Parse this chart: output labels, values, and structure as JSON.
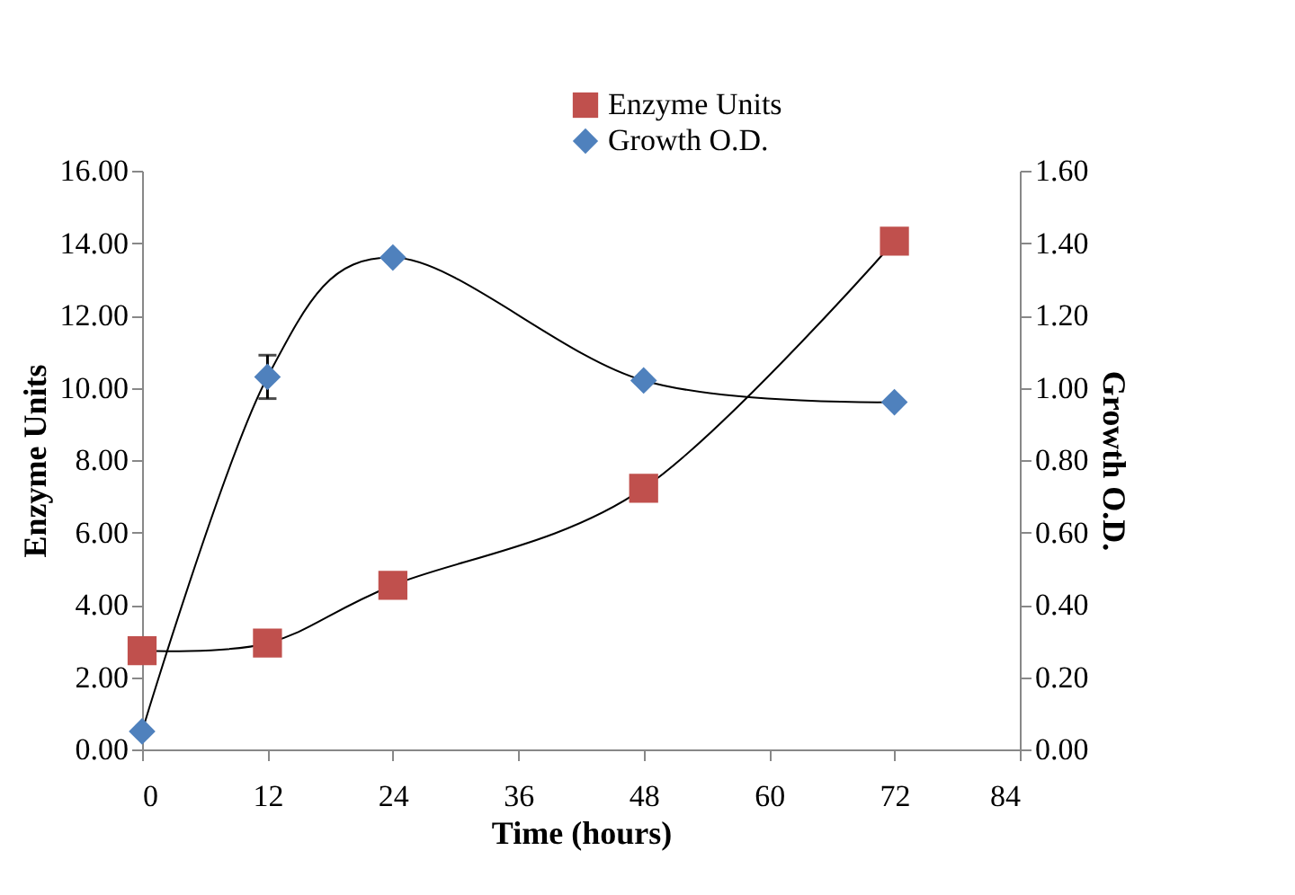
{
  "chart_data": {
    "type": "line",
    "xlabel": "Time (hours)",
    "ylabel": "Enzyme Units",
    "y2label": "Growth O.D.",
    "x": [
      0,
      12,
      24,
      48,
      72
    ],
    "series": [
      {
        "name": "Enzyme Units",
        "color": "#c0504d",
        "marker": "square",
        "values": [
          2.73,
          2.94,
          4.54,
          7.22,
          14.05
        ]
      },
      {
        "name": "Growth O.D.",
        "color": "#4f81bd",
        "marker": "diamond",
        "axis": "y2",
        "values": [
          0.05,
          1.03,
          1.36,
          1.02,
          0.96
        ],
        "errors": [
          null,
          0.06,
          null,
          null,
          null
        ]
      }
    ],
    "xlim": [
      0,
      84
    ],
    "xticks": [
      0,
      12,
      24,
      36,
      48,
      60,
      72,
      84
    ],
    "ylim": [
      0,
      16
    ],
    "yticks": [
      {
        "value": 0,
        "label": "0.00"
      },
      {
        "value": 2,
        "label": "2.00"
      },
      {
        "value": 4,
        "label": "4.00"
      },
      {
        "value": 6,
        "label": "6.00"
      },
      {
        "value": 8,
        "label": "8.00"
      },
      {
        "value": 10,
        "label": "10.00"
      },
      {
        "value": 12,
        "label": "12.00"
      },
      {
        "value": 14,
        "label": "14.00"
      },
      {
        "value": 16,
        "label": "16.00"
      }
    ],
    "y2lim": [
      0,
      1.6
    ],
    "y2ticks": [
      {
        "value": 0,
        "label": "0.00"
      },
      {
        "value": 0.2,
        "label": "0.20"
      },
      {
        "value": 0.4,
        "label": "0.40"
      },
      {
        "value": 0.6,
        "label": "0.60"
      },
      {
        "value": 0.8,
        "label": "0.80"
      },
      {
        "value": 1.0,
        "label": "1.00"
      },
      {
        "value": 1.2,
        "label": "1.20"
      },
      {
        "value": 1.4,
        "label": "1.40"
      },
      {
        "value": 1.6,
        "label": "1.60"
      }
    ],
    "legend": "top right",
    "grid": false,
    "line_style": "solid"
  }
}
